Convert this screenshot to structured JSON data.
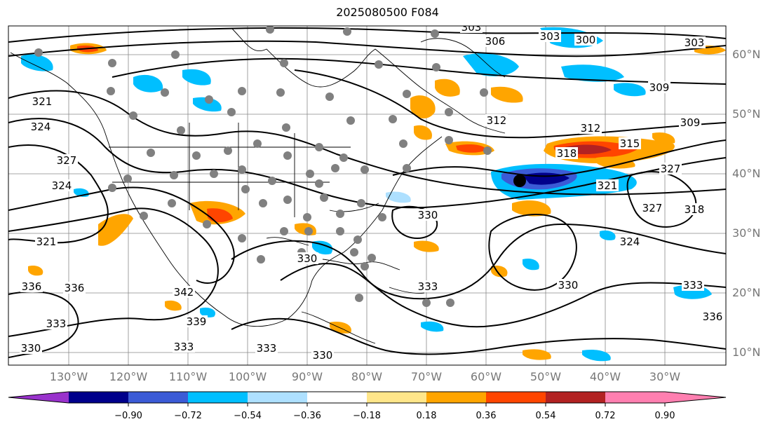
{
  "title": "2025080500 F084",
  "lon_labels": [
    "130°W",
    "120°W",
    "110°W",
    "100°W",
    "90°W",
    "80°W",
    "70°W",
    "60°W",
    "50°W",
    "40°W",
    "30°W"
  ],
  "lat_labels": [
    "60°N",
    "50°N",
    "40°N",
    "30°N",
    "20°N",
    "10°N"
  ],
  "colorbar": {
    "ticks": [
      "−0.90",
      "−0.72",
      "−0.54",
      "−0.36",
      "−0.18",
      "0.18",
      "0.36",
      "0.54",
      "0.72",
      "0.90"
    ],
    "colors": [
      "#9932cc",
      "#00008b",
      "#3b5bd6",
      "#00bfff",
      "#aee0ff",
      "#ffffff",
      "#ffe68a",
      "#ffa500",
      "#ff4500",
      "#b22222",
      "#ff7fb0"
    ]
  },
  "contour_labels": [
    "303",
    "306",
    "303",
    "300",
    "303",
    "309",
    "312",
    "309",
    "312",
    "315",
    "318",
    "321",
    "327",
    "318",
    "324",
    "321",
    "324",
    "327",
    "330",
    "333",
    "336",
    "330",
    "333",
    "336",
    "342",
    "339",
    "333",
    "330",
    "333",
    "330",
    "321",
    "324",
    "327",
    "330",
    "333",
    "336"
  ],
  "marker": "storm-center-dot"
}
